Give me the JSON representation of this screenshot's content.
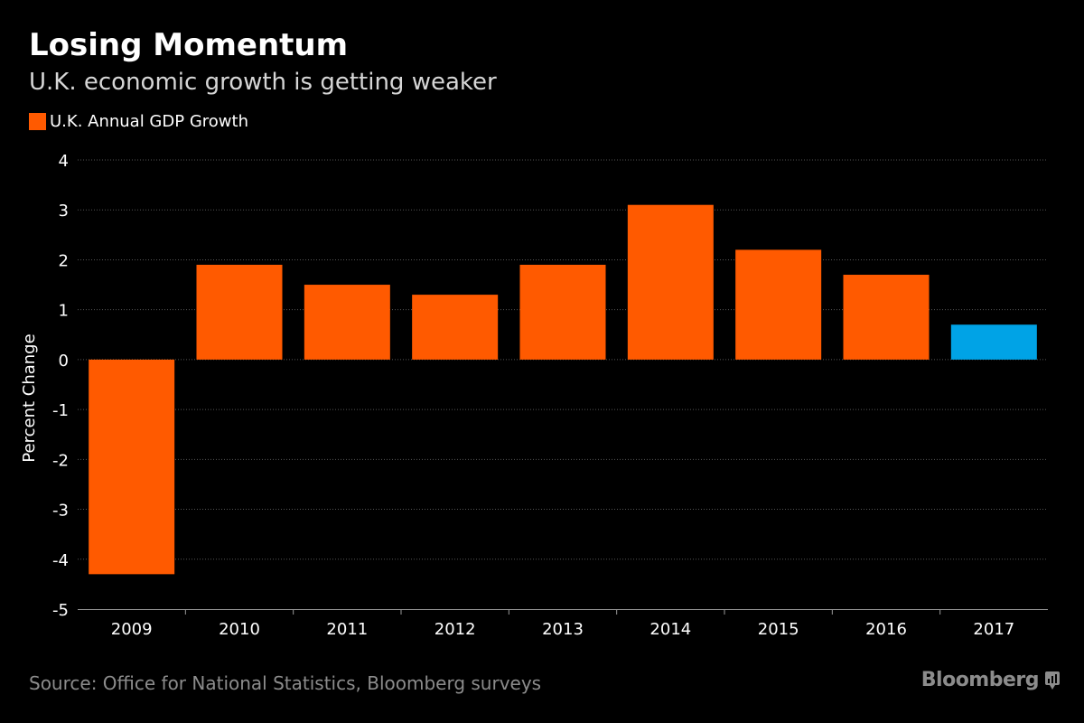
{
  "header": {
    "title": "Losing Momentum",
    "subtitle": "U.K. economic growth is getting weaker"
  },
  "legend": {
    "label": "U.K. Annual GDP Growth",
    "color": "#ff5a00"
  },
  "footer": {
    "source": "Source: Office for National Statistics, Bloomberg surveys",
    "brand": "Bloomberg",
    "brand_icon": "bloomberg-terminal-icon"
  },
  "colors": {
    "background": "#000000",
    "actual": "#ff5a00",
    "forecast": "#00a3e6",
    "grid": "#555555",
    "text": "#ffffff",
    "muted": "#8c8c8c"
  },
  "chart_data": {
    "type": "bar",
    "title": "Losing Momentum",
    "subtitle": "U.K. economic growth is getting weaker",
    "xlabel": "",
    "ylabel": "Percent Change",
    "categories": [
      "2009",
      "2010",
      "2011",
      "2012",
      "2013",
      "2014",
      "2015",
      "2016",
      "2017"
    ],
    "series": [
      {
        "name": "U.K. Annual GDP Growth",
        "values": [
          -4.3,
          1.9,
          1.5,
          1.3,
          1.9,
          3.1,
          2.2,
          1.7,
          0.7
        ],
        "colors": [
          "#ff5a00",
          "#ff5a00",
          "#ff5a00",
          "#ff5a00",
          "#ff5a00",
          "#ff5a00",
          "#ff5a00",
          "#ff5a00",
          "#00a3e6"
        ]
      }
    ],
    "yticks": [
      "4",
      "3",
      "2",
      "1",
      "0",
      "-1",
      "-2",
      "-3",
      "-4",
      "-5"
    ],
    "ylim": [
      -5,
      4
    ],
    "grid": true,
    "legend_position": "top-left"
  }
}
